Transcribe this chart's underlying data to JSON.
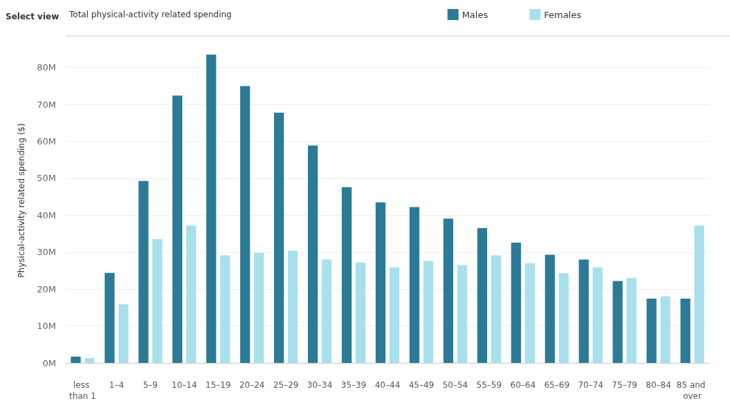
{
  "chart_data": {
    "type": "bar",
    "title": "Total physical-activity related spending",
    "annotations": [
      "Select view"
    ],
    "ylabel": "Physical-activity related spending ($)",
    "categories": [
      "less than 1",
      "1–4",
      "5–9",
      "10–14",
      "15–19",
      "20–24",
      "25–29",
      "30–34",
      "35–39",
      "40–44",
      "45–49",
      "50–54",
      "55–59",
      "60–64",
      "65–69",
      "70–74",
      "75–79",
      "80–84",
      "85 and over"
    ],
    "series": [
      {
        "name": "Males",
        "color": "#2b7b96",
        "values": [
          1.7,
          24.4,
          49.3,
          72.4,
          83.5,
          75,
          67.8,
          58.9,
          47.6,
          43.5,
          42.2,
          39.1,
          36.5,
          32.6,
          29.3,
          28,
          22.2,
          17.4,
          17.4
        ]
      },
      {
        "name": "Females",
        "color": "#a8e0ec",
        "values": [
          1.3,
          15.9,
          33.5,
          37.2,
          29.1,
          29.8,
          30.4,
          28,
          27.2,
          25.9,
          27.6,
          26.5,
          29.1,
          27,
          24.3,
          25.9,
          23,
          18,
          37.2
        ]
      }
    ],
    "ylim": [
      0,
      88
    ],
    "yticks": [
      {
        "value": 0,
        "label": "0M"
      },
      {
        "value": 10,
        "label": "10M"
      },
      {
        "value": 20,
        "label": "20M"
      },
      {
        "value": 30,
        "label": "30M"
      },
      {
        "value": 40,
        "label": "40M"
      },
      {
        "value": 50,
        "label": "50M"
      },
      {
        "value": 60,
        "label": "60M"
      },
      {
        "value": 70,
        "label": "70M"
      },
      {
        "value": 80,
        "label": "80M"
      }
    ],
    "grid": "y",
    "legend": "top right"
  }
}
